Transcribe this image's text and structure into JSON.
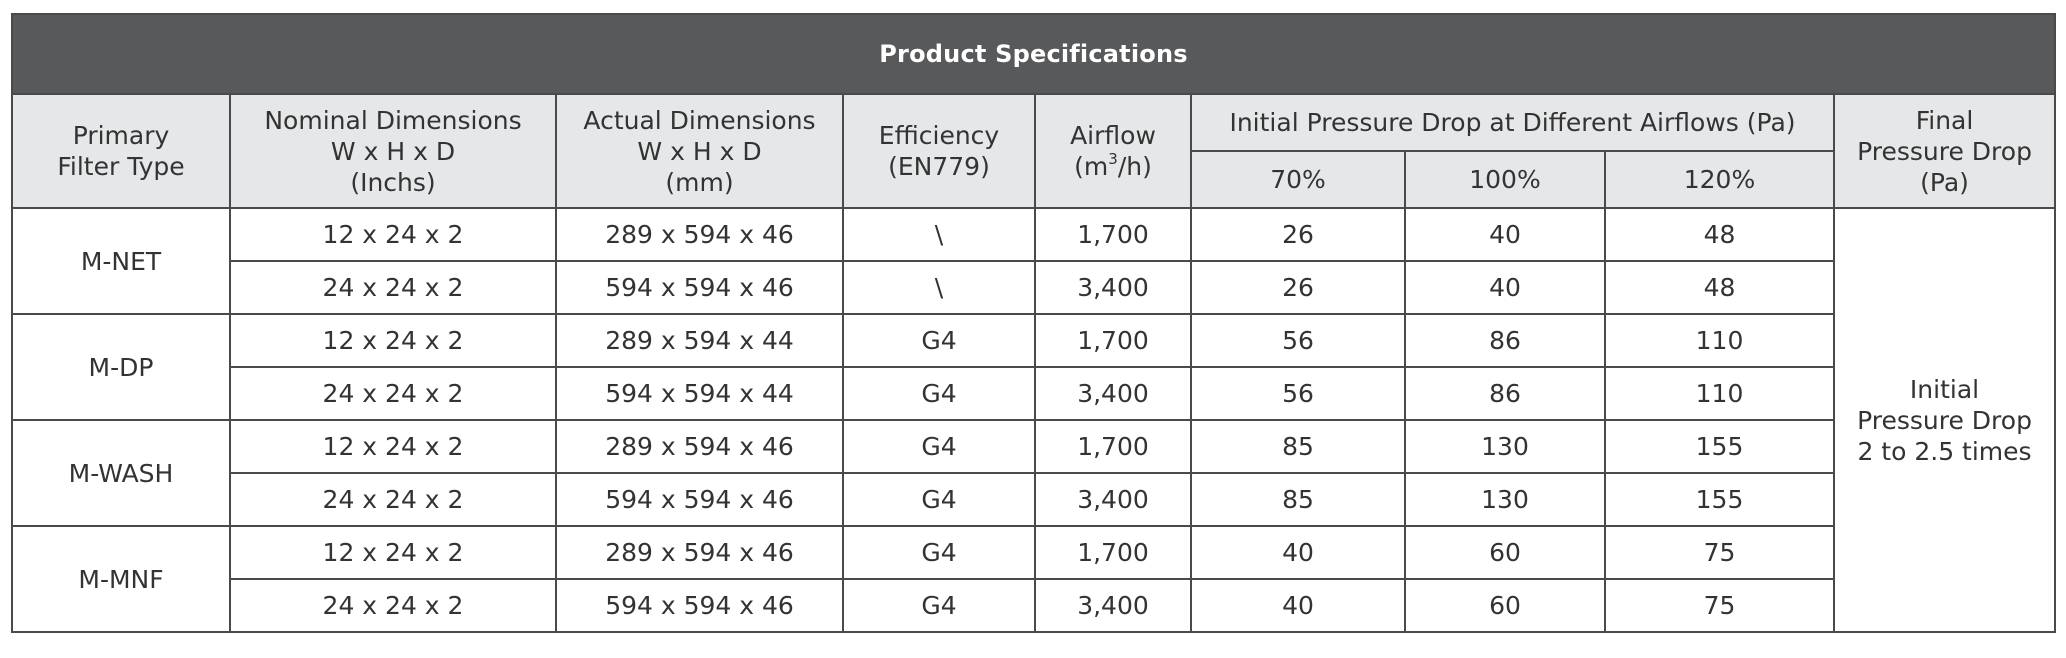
{
  "table": {
    "title": "Product Specifications",
    "headers": {
      "primary_filter_type": [
        "Primary",
        "Filter Type"
      ],
      "nominal_dimensions": [
        "Nominal Dimensions",
        "W x H x D",
        "(Inchs)"
      ],
      "actual_dimensions": [
        "Actual Dimensions",
        "W x H x D",
        "(mm)"
      ],
      "efficiency": [
        "Efficiency",
        "(EN779)"
      ],
      "airflow": {
        "label": "Airflow",
        "unit_prefix": "(m",
        "unit_sup": "3",
        "unit_suffix": "/h)"
      },
      "initial_pressure_drop": "Initial Pressure Drop at Different Airflows (Pa)",
      "airflow_percentages": [
        "70%",
        "100%",
        "120%"
      ],
      "final_pressure_drop": [
        "Final",
        "Pressure Drop",
        "(Pa)"
      ]
    },
    "final_pressure_drop_value": [
      "Initial",
      "Pressure Drop",
      "2 to 2.5 times"
    ],
    "groups": [
      {
        "type": "M-NET",
        "rows": [
          {
            "nominal": "12 x 24 x 2",
            "actual": "289 x 594 x 46",
            "efficiency": "\\",
            "airflow": "1,700",
            "p70": "26",
            "p100": "40",
            "p120": "48"
          },
          {
            "nominal": "24 x 24 x 2",
            "actual": "594 x 594 x 46",
            "efficiency": "\\",
            "airflow": "3,400",
            "p70": "26",
            "p100": "40",
            "p120": "48"
          }
        ]
      },
      {
        "type": "M-DP",
        "rows": [
          {
            "nominal": "12 x 24 x 2",
            "actual": "289 x 594 x 44",
            "efficiency": "G4",
            "airflow": "1,700",
            "p70": "56",
            "p100": "86",
            "p120": "110"
          },
          {
            "nominal": "24 x 24 x 2",
            "actual": "594 x 594 x 44",
            "efficiency": "G4",
            "airflow": "3,400",
            "p70": "56",
            "p100": "86",
            "p120": "110"
          }
        ]
      },
      {
        "type": "M-WASH",
        "rows": [
          {
            "nominal": "12 x 24 x 2",
            "actual": "289 x 594 x 46",
            "efficiency": "G4",
            "airflow": "1,700",
            "p70": "85",
            "p100": "130",
            "p120": "155"
          },
          {
            "nominal": "24 x 24 x 2",
            "actual": "594 x 594 x 46",
            "efficiency": "G4",
            "airflow": "3,400",
            "p70": "85",
            "p100": "130",
            "p120": "155"
          }
        ]
      },
      {
        "type": "M-MNF",
        "rows": [
          {
            "nominal": "12 x 24 x 2",
            "actual": "289 x 594 x 46",
            "efficiency": "G4",
            "airflow": "1,700",
            "p70": "40",
            "p100": "60",
            "p120": "75"
          },
          {
            "nominal": "24 x 24 x 2",
            "actual": "594 x 594 x 46",
            "efficiency": "G4",
            "airflow": "3,400",
            "p70": "40",
            "p100": "60",
            "p120": "75"
          }
        ]
      }
    ]
  }
}
